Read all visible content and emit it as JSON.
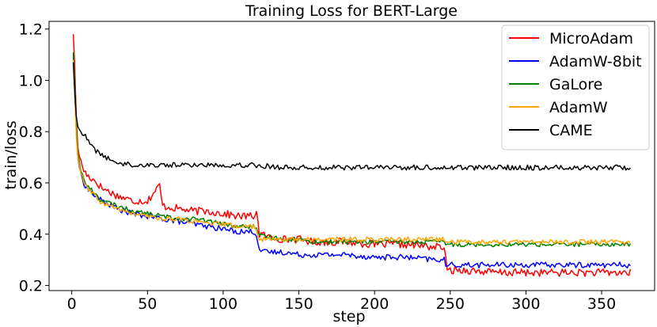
{
  "chart_data": {
    "type": "line",
    "title": "Training Loss for BERT-Large",
    "xlabel": "step",
    "ylabel": "train/loss",
    "xlim": [
      -15,
      385
    ],
    "ylim": [
      0.18,
      1.23
    ],
    "xticks": [
      0,
      50,
      100,
      150,
      200,
      250,
      300,
      350
    ],
    "yticks": [
      0.2,
      0.4,
      0.6,
      0.8,
      1.0,
      1.2
    ],
    "xtick_labels": [
      "0",
      "50",
      "100",
      "150",
      "200",
      "250",
      "300",
      "350"
    ],
    "ytick_labels": [
      "0.2",
      "0.4",
      "0.6",
      "0.8",
      "1.0",
      "1.2"
    ],
    "grid": false,
    "legend_position": "top-right",
    "series": [
      {
        "name": "MicroAdam",
        "color": "#ff0000",
        "x": [
          1,
          2,
          3,
          4,
          6,
          8,
          10,
          15,
          20,
          30,
          40,
          50,
          58,
          60,
          70,
          80,
          90,
          100,
          110,
          120,
          122,
          124,
          130,
          140,
          150,
          160,
          180,
          200,
          220,
          240,
          246,
          248,
          250,
          260,
          280,
          300,
          320,
          340,
          360,
          369
        ],
        "y": [
          1.18,
          1.05,
          0.85,
          0.74,
          0.68,
          0.65,
          0.63,
          0.61,
          0.58,
          0.55,
          0.53,
          0.53,
          0.59,
          0.51,
          0.5,
          0.49,
          0.49,
          0.48,
          0.47,
          0.47,
          0.49,
          0.4,
          0.39,
          0.38,
          0.38,
          0.37,
          0.37,
          0.36,
          0.36,
          0.35,
          0.35,
          0.25,
          0.26,
          0.26,
          0.25,
          0.25,
          0.25,
          0.25,
          0.25,
          0.25
        ]
      },
      {
        "name": "AdamW-8bit",
        "color": "#0000ff",
        "x": [
          1,
          2,
          3,
          4,
          6,
          8,
          10,
          15,
          20,
          30,
          40,
          50,
          60,
          70,
          80,
          90,
          100,
          110,
          120,
          122,
          124,
          126,
          130,
          140,
          150,
          160,
          180,
          200,
          220,
          240,
          246,
          248,
          250,
          260,
          280,
          300,
          320,
          340,
          360,
          369
        ],
        "y": [
          1.1,
          0.95,
          0.8,
          0.7,
          0.63,
          0.6,
          0.58,
          0.55,
          0.53,
          0.5,
          0.48,
          0.47,
          0.46,
          0.45,
          0.44,
          0.43,
          0.42,
          0.41,
          0.41,
          0.4,
          0.34,
          0.33,
          0.33,
          0.33,
          0.32,
          0.32,
          0.32,
          0.31,
          0.31,
          0.3,
          0.3,
          0.27,
          0.28,
          0.28,
          0.28,
          0.28,
          0.28,
          0.28,
          0.28,
          0.28
        ]
      },
      {
        "name": "GaLore",
        "color": "#008000",
        "x": [
          1,
          2,
          3,
          4,
          6,
          8,
          10,
          15,
          20,
          30,
          40,
          50,
          60,
          70,
          80,
          90,
          100,
          110,
          120,
          122,
          124,
          130,
          140,
          150,
          160,
          180,
          200,
          220,
          240,
          246,
          248,
          250,
          260,
          280,
          300,
          320,
          340,
          360,
          369
        ],
        "y": [
          1.11,
          1.0,
          0.82,
          0.72,
          0.65,
          0.61,
          0.59,
          0.56,
          0.53,
          0.51,
          0.49,
          0.48,
          0.47,
          0.46,
          0.46,
          0.45,
          0.44,
          0.43,
          0.43,
          0.42,
          0.39,
          0.39,
          0.38,
          0.38,
          0.37,
          0.37,
          0.37,
          0.37,
          0.37,
          0.37,
          0.36,
          0.36,
          0.36,
          0.36,
          0.36,
          0.36,
          0.36,
          0.36,
          0.36
        ]
      },
      {
        "name": "AdamW",
        "color": "#ffa500",
        "x": [
          1,
          2,
          3,
          4,
          6,
          8,
          10,
          15,
          20,
          30,
          40,
          50,
          60,
          70,
          80,
          90,
          100,
          110,
          120,
          122,
          124,
          130,
          140,
          150,
          160,
          180,
          200,
          220,
          240,
          246,
          248,
          250,
          260,
          280,
          300,
          320,
          340,
          360,
          369
        ],
        "y": [
          1.08,
          0.95,
          0.78,
          0.7,
          0.64,
          0.6,
          0.58,
          0.55,
          0.52,
          0.5,
          0.48,
          0.47,
          0.46,
          0.46,
          0.45,
          0.44,
          0.44,
          0.43,
          0.43,
          0.42,
          0.38,
          0.38,
          0.38,
          0.38,
          0.38,
          0.38,
          0.38,
          0.38,
          0.38,
          0.38,
          0.37,
          0.37,
          0.37,
          0.37,
          0.37,
          0.37,
          0.37,
          0.37,
          0.37
        ]
      },
      {
        "name": "CAME",
        "color": "#000000",
        "x": [
          1,
          2,
          3,
          4,
          6,
          8,
          10,
          15,
          20,
          25,
          30,
          40,
          50,
          60,
          80,
          100,
          120,
          140,
          160,
          180,
          200,
          220,
          240,
          260,
          280,
          300,
          320,
          340,
          360,
          369
        ],
        "y": [
          1.07,
          0.95,
          0.86,
          0.82,
          0.8,
          0.79,
          0.77,
          0.73,
          0.71,
          0.69,
          0.68,
          0.67,
          0.67,
          0.67,
          0.67,
          0.67,
          0.67,
          0.66,
          0.66,
          0.66,
          0.66,
          0.66,
          0.66,
          0.66,
          0.66,
          0.66,
          0.66,
          0.66,
          0.66,
          0.66
        ]
      }
    ]
  }
}
